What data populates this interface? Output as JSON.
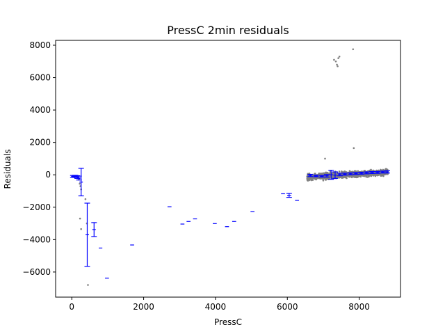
{
  "chart_data": {
    "type": "scatter",
    "title": "PressC 2min residuals",
    "xlabel": "PressC",
    "ylabel": "Residuals",
    "xlim": [
      -450,
      9150
    ],
    "ylim": [
      -7550,
      8300
    ],
    "xticks": [
      0,
      2000,
      4000,
      6000,
      8000
    ],
    "yticks": [
      -6000,
      -4000,
      -2000,
      0,
      2000,
      4000,
      6000,
      8000
    ],
    "xtick_labels": [
      "0",
      "2000",
      "4000",
      "6000",
      "8000"
    ],
    "ytick_labels": [
      "−6000",
      "−4000",
      "−2000",
      "0",
      "2000",
      "4000",
      "6000",
      "8000"
    ],
    "grid": false,
    "colors": {
      "points": "#808080",
      "errorbars": "#0000ff"
    },
    "series": [
      {
        "kind": "scatter",
        "points": [
          [
            10,
            -100
          ],
          [
            30,
            -120
          ],
          [
            50,
            -80
          ],
          [
            70,
            -150
          ],
          [
            90,
            -90
          ],
          [
            110,
            -130
          ],
          [
            140,
            -110
          ],
          [
            160,
            -200
          ],
          [
            180,
            -60
          ],
          [
            200,
            -300
          ],
          [
            220,
            -550
          ],
          [
            240,
            -700
          ],
          [
            260,
            -900
          ],
          [
            230,
            -2700
          ],
          [
            260,
            -3350
          ],
          [
            380,
            -1500
          ],
          [
            420,
            -3000
          ],
          [
            450,
            -6800
          ],
          [
            7000,
            -350
          ],
          [
            7050,
            1000
          ],
          [
            7300,
            7100
          ],
          [
            7350,
            7000
          ],
          [
            7380,
            6800
          ],
          [
            7400,
            6700
          ],
          [
            7420,
            7200
          ],
          [
            7450,
            7300
          ],
          [
            7830,
            7750
          ],
          [
            7850,
            1650
          ]
        ],
        "cluster": {
          "x_range": [
            6550,
            8800
          ],
          "y_start": -150,
          "y_end": 170,
          "spread": 180,
          "count": 1200
        }
      },
      {
        "kind": "errorbar",
        "bins": [
          {
            "x": 30,
            "y": -100,
            "err": 60,
            "w": 40
          },
          {
            "x": 90,
            "y": -90,
            "err": 60,
            "w": 40
          },
          {
            "x": 150,
            "y": -140,
            "err": 80,
            "w": 40
          },
          {
            "x": 200,
            "y": -200,
            "err": 120,
            "w": 30
          },
          {
            "x": 260,
            "y": -450,
            "err": 850,
            "w": 40
          },
          {
            "x": 430,
            "y": -3700,
            "err": 1950,
            "w": 40
          },
          {
            "x": 620,
            "y": -3380,
            "err": 430,
            "w": 70
          },
          {
            "x": 800,
            "y": -4520,
            "err": 0,
            "w": 100
          },
          {
            "x": 980,
            "y": -6380,
            "err": 0,
            "w": 110
          },
          {
            "x": 1680,
            "y": -4330,
            "err": 0,
            "w": 110
          },
          {
            "x": 2720,
            "y": -1970,
            "err": 0,
            "w": 110
          },
          {
            "x": 3080,
            "y": -3040,
            "err": 0,
            "w": 110
          },
          {
            "x": 3250,
            "y": -2880,
            "err": 0,
            "w": 110
          },
          {
            "x": 3430,
            "y": -2720,
            "err": 0,
            "w": 110
          },
          {
            "x": 3980,
            "y": -3010,
            "err": 0,
            "w": 110
          },
          {
            "x": 4320,
            "y": -3200,
            "err": 0,
            "w": 110
          },
          {
            "x": 4520,
            "y": -2880,
            "err": 0,
            "w": 110
          },
          {
            "x": 5030,
            "y": -2270,
            "err": 0,
            "w": 110
          },
          {
            "x": 5880,
            "y": -1170,
            "err": 0,
            "w": 110
          },
          {
            "x": 6050,
            "y": -1270,
            "err": 120,
            "w": 110
          },
          {
            "x": 6270,
            "y": -1580,
            "err": 0,
            "w": 110
          },
          {
            "x": 6640,
            "y": -40,
            "err": 70,
            "w": 100
          },
          {
            "x": 6800,
            "y": -70,
            "err": 50,
            "w": 100
          },
          {
            "x": 6960,
            "y": -90,
            "err": 50,
            "w": 100
          },
          {
            "x": 7100,
            "y": -60,
            "err": 80,
            "w": 100
          },
          {
            "x": 7220,
            "y": 0,
            "err": 280,
            "w": 100
          },
          {
            "x": 7330,
            "y": -20,
            "err": 200,
            "w": 100
          },
          {
            "x": 7460,
            "y": 20,
            "err": 80,
            "w": 100
          },
          {
            "x": 7600,
            "y": 40,
            "err": 60,
            "w": 100
          },
          {
            "x": 7760,
            "y": 60,
            "err": 60,
            "w": 100
          },
          {
            "x": 7910,
            "y": 80,
            "err": 60,
            "w": 100
          },
          {
            "x": 8060,
            "y": 100,
            "err": 60,
            "w": 100
          },
          {
            "x": 8210,
            "y": 120,
            "err": 60,
            "w": 100
          },
          {
            "x": 8360,
            "y": 140,
            "err": 60,
            "w": 100
          },
          {
            "x": 8510,
            "y": 150,
            "err": 60,
            "w": 100
          },
          {
            "x": 8660,
            "y": 170,
            "err": 60,
            "w": 100
          },
          {
            "x": 8780,
            "y": 180,
            "err": 70,
            "w": 80
          }
        ]
      }
    ]
  }
}
